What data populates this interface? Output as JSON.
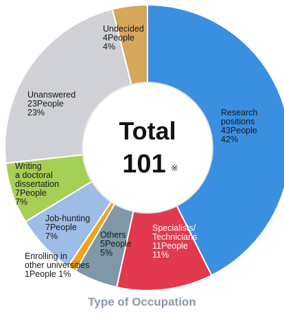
{
  "chart_data": {
    "type": "pie",
    "title": "Type of Occupation",
    "center_label": {
      "line1": "Total",
      "value": "101",
      "mark": "※"
    },
    "total": 101,
    "slices": [
      {
        "name": "Research positions",
        "label_lines": [
          "Research",
          "positions",
          "43People",
          "42%"
        ],
        "count": 43,
        "percent": 42,
        "color": "#3b8fe0"
      },
      {
        "name": "Specialists/Technicians",
        "label_lines": [
          "Specialists/",
          "Technicians",
          "11People",
          "11%"
        ],
        "count": 11,
        "percent": 11,
        "color": "#e2394e"
      },
      {
        "name": "Others",
        "label_lines": [
          "Others",
          "5People",
          "5%"
        ],
        "count": 5,
        "percent": 5,
        "color": "#7f97a6"
      },
      {
        "name": "Enrolling in other universities",
        "label_lines": [
          "Enrolling in",
          "other universities",
          "1People 1%"
        ],
        "count": 1,
        "percent": 1,
        "color": "#f2a21e"
      },
      {
        "name": "Job-hunting",
        "label_lines": [
          "Job-hunting",
          "7People",
          "7%"
        ],
        "count": 7,
        "percent": 7,
        "color": "#9dbde6"
      },
      {
        "name": "Writing a doctoral dissertation",
        "label_lines": [
          "Writing",
          "a doctoral",
          "dissertation",
          "7People",
          "7%"
        ],
        "count": 7,
        "percent": 7,
        "color": "#a6cf55"
      },
      {
        "name": "Unanswered",
        "label_lines": [
          "Unanswered",
          "23People",
          "23%"
        ],
        "count": 23,
        "percent": 23,
        "color": "#cfd1d6"
      },
      {
        "name": "Undecided",
        "label_lines": [
          "Undecided",
          "4People",
          "4%"
        ],
        "count": 4,
        "percent": 4,
        "color": "#d5a75a"
      }
    ]
  }
}
